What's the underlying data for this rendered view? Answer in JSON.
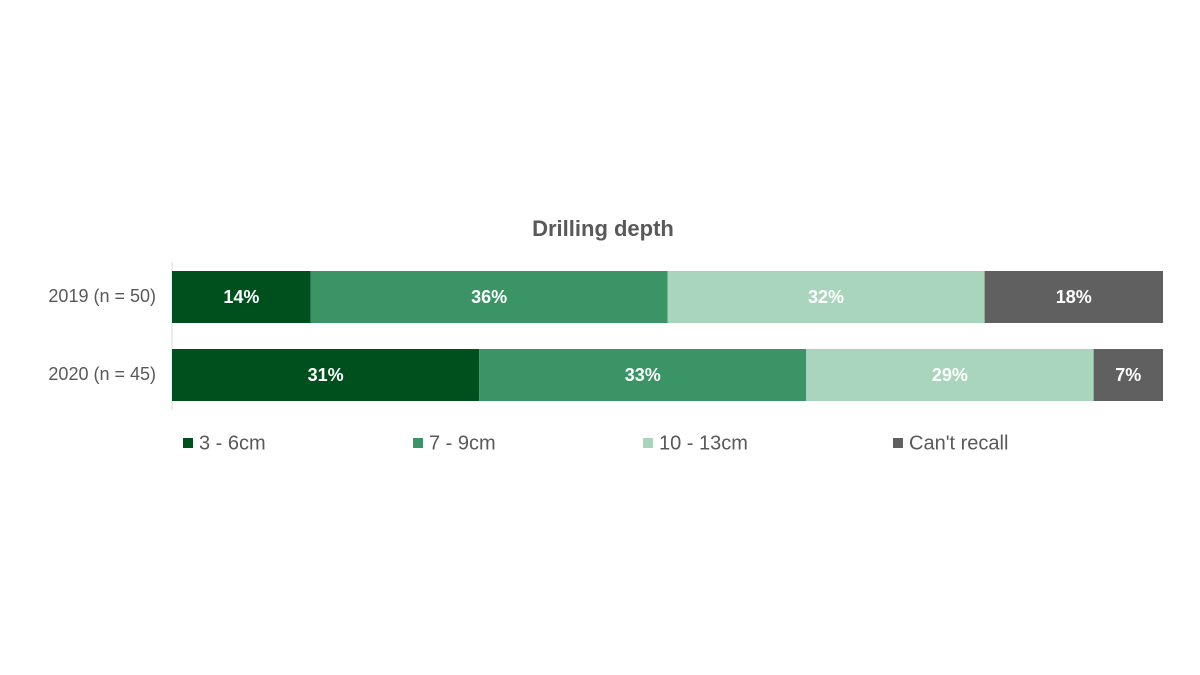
{
  "chart_data": {
    "type": "stacked-bar-horizontal",
    "title": "Drilling depth",
    "categories": [
      "2019 (n = 50)",
      "2020 (n = 45)"
    ],
    "series": [
      {
        "name": "3 - 6cm",
        "color": "#00501e",
        "values": [
          14,
          31
        ],
        "value_labels": [
          "14%",
          "31%"
        ]
      },
      {
        "name": "7 - 9cm",
        "color": "#3a9466",
        "values": [
          36,
          33
        ],
        "value_labels": [
          "36%",
          "33%"
        ]
      },
      {
        "name": "10 - 13cm",
        "color": "#a8d5bc",
        "values": [
          32,
          29
        ],
        "value_labels": [
          "32%",
          "29%"
        ]
      },
      {
        "name": "Can't recall",
        "color": "#606060",
        "values": [
          18,
          7
        ],
        "value_labels": [
          "18%",
          "7%"
        ]
      }
    ],
    "legend": "bottom"
  }
}
